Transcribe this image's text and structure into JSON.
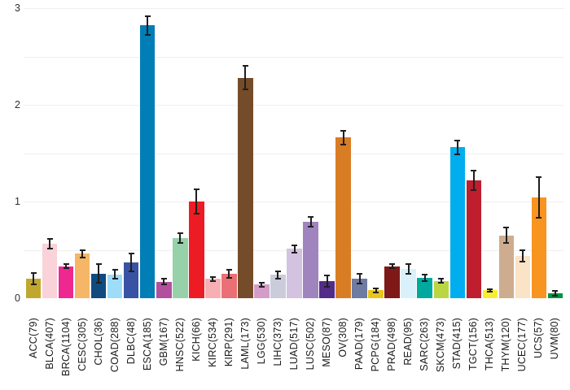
{
  "chart_data": {
    "type": "bar",
    "title": "",
    "xlabel": "",
    "ylabel": "",
    "ylim": [
      0,
      3
    ],
    "ytick_labels": [
      "0",
      "1",
      "2",
      "3"
    ],
    "yticks": [
      0,
      1,
      2,
      3
    ],
    "gridline_step": 0.5,
    "grid": true,
    "legend_position": "none",
    "error_bars": true,
    "error_bar_color": "#1f1f1f",
    "background_color": "#ffffff",
    "categories": [
      "ACC(79)",
      "BLCA(407)",
      "BRCA(1104)",
      "CESC(305)",
      "CHOL(36)",
      "COAD(288)",
      "DLBC(48)",
      "ESCA(185)",
      "GBM(167)",
      "HNSC(522)",
      "KICH(66)",
      "KIRC(534)",
      "KIRP(291)",
      "LAML(173)",
      "LGG(530)",
      "LIHC(373)",
      "LUAD(517)",
      "LUSC(502)",
      "MESO(87)",
      "OV(308)",
      "PAAD(179)",
      "PCPG(184)",
      "PRAD(498)",
      "READ(95)",
      "SARC(263)",
      "SKCM(473)",
      "STAD(415)",
      "TGCT(156)",
      "THCA(513)",
      "THYM(120)",
      "UCEC(177)",
      "UCS(57)",
      "UVM(80)"
    ],
    "values": [
      0.2,
      0.56,
      0.33,
      0.46,
      0.255,
      0.245,
      0.37,
      2.82,
      0.17,
      0.62,
      1.0,
      0.2,
      0.25,
      2.28,
      0.14,
      0.24,
      0.51,
      0.79,
      0.175,
      1.66,
      0.2,
      0.08,
      0.33,
      0.3,
      0.21,
      0.18,
      1.56,
      1.22,
      0.08,
      0.65,
      0.44,
      1.04,
      0.05
    ],
    "errors": [
      0.06,
      0.05,
      0.02,
      0.04,
      0.095,
      0.045,
      0.09,
      0.1,
      0.03,
      0.05,
      0.13,
      0.02,
      0.04,
      0.12,
      0.02,
      0.04,
      0.04,
      0.05,
      0.06,
      0.07,
      0.05,
      0.02,
      0.02,
      0.05,
      0.03,
      0.02,
      0.07,
      0.1,
      0.015,
      0.08,
      0.06,
      0.21,
      0.025
    ],
    "colors": [
      "#C1A72F",
      "#FAD2D9",
      "#ED2891",
      "#F6B667",
      "#104A7F",
      "#9EDDF9",
      "#3953A4",
      "#007EB5",
      "#B2509E",
      "#97D1A9",
      "#ED1C24",
      "#F8AFB3",
      "#EA7075",
      "#754C29",
      "#D49DC7",
      "#CACCDB",
      "#D3C3E0",
      "#A084BD",
      "#542C88",
      "#D97D25",
      "#6E7BA2",
      "#E8C51D",
      "#7E1918",
      "#DAF1FC",
      "#00A99D",
      "#BBD642",
      "#00AEEF",
      "#BE1E2D",
      "#F9ED32",
      "#CEAC8F",
      "#FBE3C7",
      "#F89420",
      "#009444"
    ]
  }
}
